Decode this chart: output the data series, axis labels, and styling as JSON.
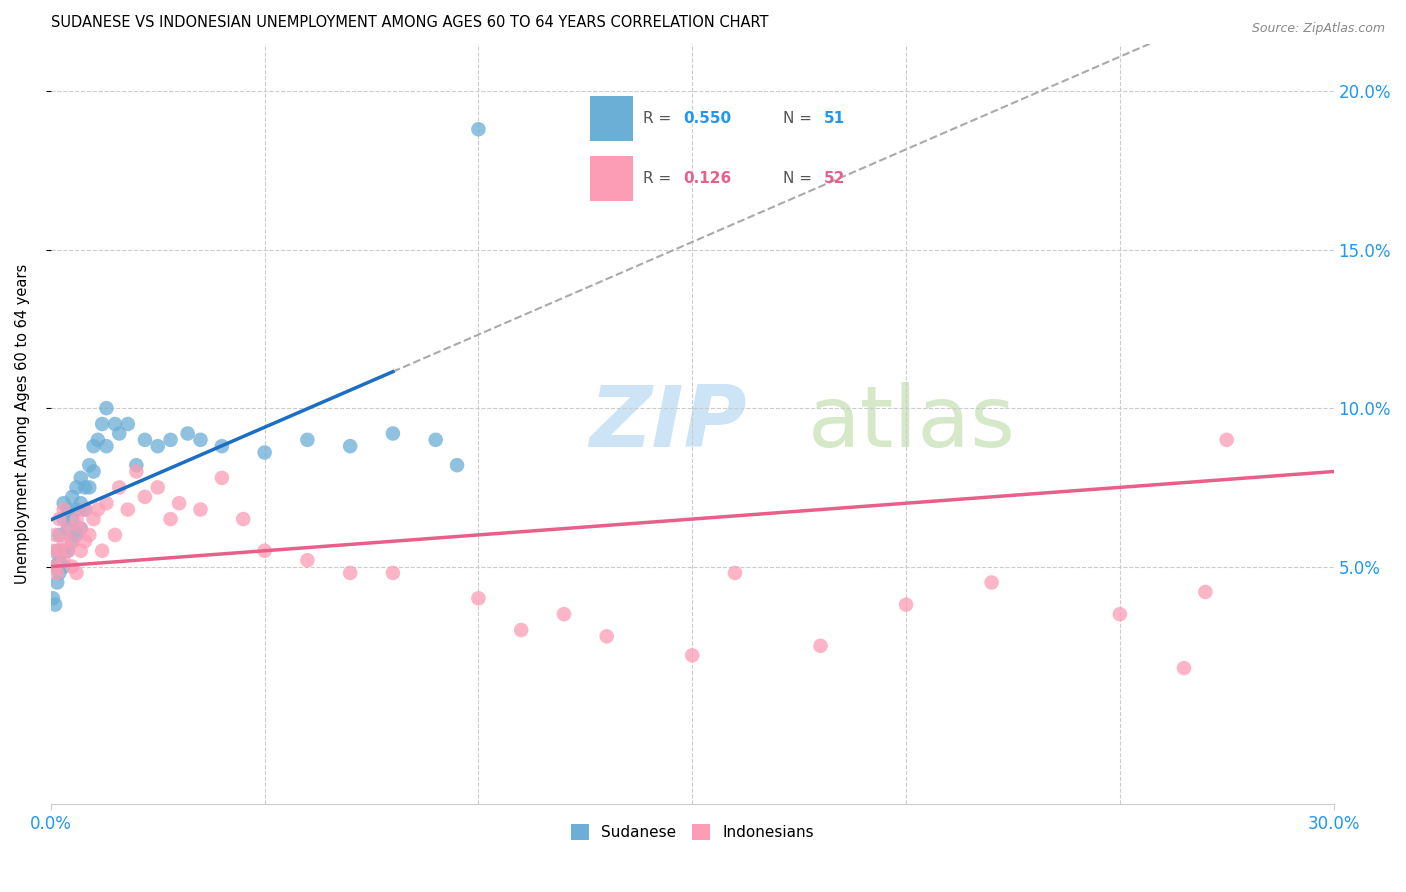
{
  "title": "SUDANESE VS INDONESIAN UNEMPLOYMENT AMONG AGES 60 TO 64 YEARS CORRELATION CHART",
  "source": "Source: ZipAtlas.com",
  "ylabel": "Unemployment Among Ages 60 to 64 years",
  "xmin": 0.0,
  "xmax": 0.3,
  "ymin": -0.025,
  "ymax": 0.215,
  "legend1_r": "0.550",
  "legend1_n": "51",
  "legend2_r": "0.126",
  "legend2_n": "52",
  "sudanese_color": "#6baed6",
  "indonesian_color": "#fc9db5",
  "trendline_blue": "#1a6fc4",
  "trendline_pink": "#e8608a",
  "sudanese_x": [
    0.0005,
    0.001,
    0.001,
    0.0015,
    0.0015,
    0.002,
    0.002,
    0.002,
    0.003,
    0.003,
    0.003,
    0.003,
    0.004,
    0.004,
    0.004,
    0.005,
    0.005,
    0.005,
    0.006,
    0.006,
    0.006,
    0.007,
    0.007,
    0.007,
    0.008,
    0.008,
    0.009,
    0.009,
    0.01,
    0.01,
    0.011,
    0.012,
    0.013,
    0.013,
    0.015,
    0.016,
    0.018,
    0.02,
    0.022,
    0.025,
    0.028,
    0.032,
    0.035,
    0.04,
    0.05,
    0.06,
    0.07,
    0.08,
    0.09,
    0.095,
    0.1
  ],
  "sudanese_y": [
    0.04,
    0.038,
    0.05,
    0.045,
    0.055,
    0.048,
    0.052,
    0.06,
    0.05,
    0.055,
    0.065,
    0.07,
    0.055,
    0.062,
    0.068,
    0.058,
    0.065,
    0.072,
    0.06,
    0.068,
    0.075,
    0.062,
    0.07,
    0.078,
    0.068,
    0.075,
    0.075,
    0.082,
    0.08,
    0.088,
    0.09,
    0.095,
    0.088,
    0.1,
    0.095,
    0.092,
    0.095,
    0.082,
    0.09,
    0.088,
    0.09,
    0.092,
    0.09,
    0.088,
    0.086,
    0.09,
    0.088,
    0.092,
    0.09,
    0.082,
    0.188
  ],
  "indonesian_x": [
    0.0005,
    0.001,
    0.001,
    0.0015,
    0.002,
    0.002,
    0.003,
    0.003,
    0.003,
    0.004,
    0.004,
    0.005,
    0.005,
    0.006,
    0.006,
    0.007,
    0.007,
    0.008,
    0.008,
    0.009,
    0.01,
    0.011,
    0.012,
    0.013,
    0.015,
    0.016,
    0.018,
    0.02,
    0.022,
    0.025,
    0.028,
    0.03,
    0.035,
    0.04,
    0.045,
    0.05,
    0.06,
    0.07,
    0.08,
    0.1,
    0.11,
    0.12,
    0.13,
    0.15,
    0.16,
    0.18,
    0.2,
    0.22,
    0.25,
    0.265,
    0.27,
    0.275
  ],
  "indonesian_y": [
    0.055,
    0.05,
    0.06,
    0.048,
    0.055,
    0.065,
    0.052,
    0.058,
    0.068,
    0.055,
    0.062,
    0.05,
    0.058,
    0.065,
    0.048,
    0.062,
    0.055,
    0.068,
    0.058,
    0.06,
    0.065,
    0.068,
    0.055,
    0.07,
    0.06,
    0.075,
    0.068,
    0.08,
    0.072,
    0.075,
    0.065,
    0.07,
    0.068,
    0.078,
    0.065,
    0.055,
    0.052,
    0.048,
    0.048,
    0.04,
    0.03,
    0.035,
    0.028,
    0.022,
    0.048,
    0.025,
    0.038,
    0.045,
    0.035,
    0.018,
    0.042,
    0.09
  ]
}
